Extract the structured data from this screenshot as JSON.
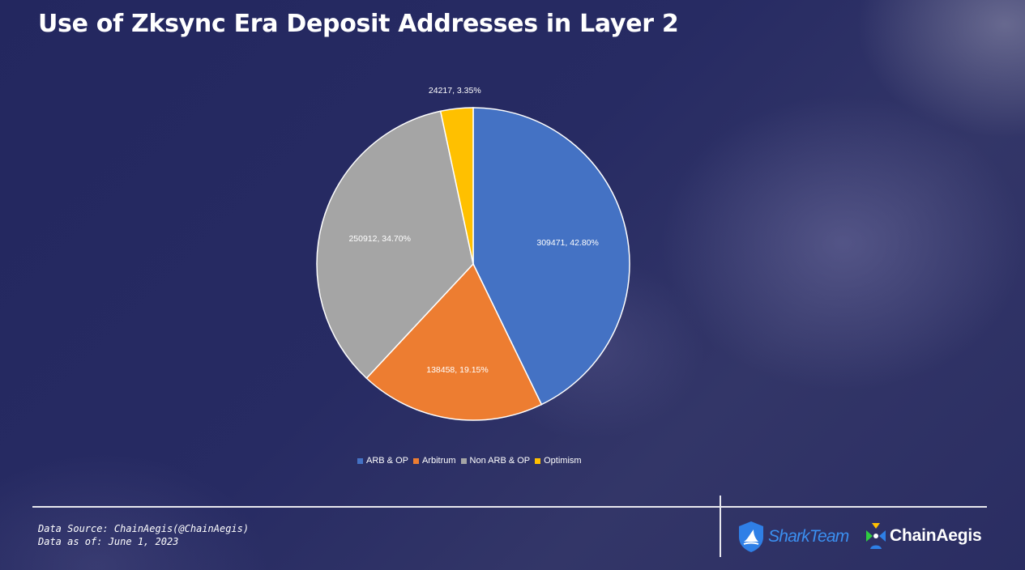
{
  "title": "Use of Zksync Era Deposit Addresses in Layer 2",
  "chart_data": {
    "type": "pie",
    "title": "Use of Zksync Era Deposit Addresses in Layer 2",
    "categories": [
      "ARB & OP",
      "Arbitrum",
      "Non ARB & OP",
      "Optimism"
    ],
    "values": [
      309471,
      138458,
      250912,
      24217
    ],
    "labels": [
      "309471, 42.80%",
      "138458, 19.15%",
      "250912, 34.70%",
      "24217, 3.35%"
    ],
    "colors": [
      "#4472c4",
      "#ed7d31",
      "#a5a5a5",
      "#ffc000"
    ],
    "legend_position": "bottom"
  },
  "footer": {
    "source": "Data Source: ChainAegis(@ChainAegis)",
    "asof": "Data as of: June 1, 2023"
  },
  "logos": {
    "shark": "SharkTeam",
    "chain": "ChainAegis"
  }
}
